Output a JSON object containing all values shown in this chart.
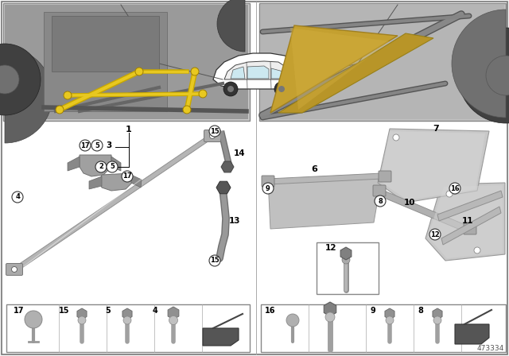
{
  "diagram_number": "473334",
  "bg_color": "#f5f5f5",
  "white": "#ffffff",
  "part_gray": "#b8b8b8",
  "part_gray_dark": "#909090",
  "part_gray_light": "#d0d0d0",
  "gold_color": "#c4a83a",
  "gold_dark": "#a08828",
  "yellow_bar": "#d4b800",
  "black": "#222222",
  "border_color": "#888888",
  "legend_bg": "#f0f0f0"
}
